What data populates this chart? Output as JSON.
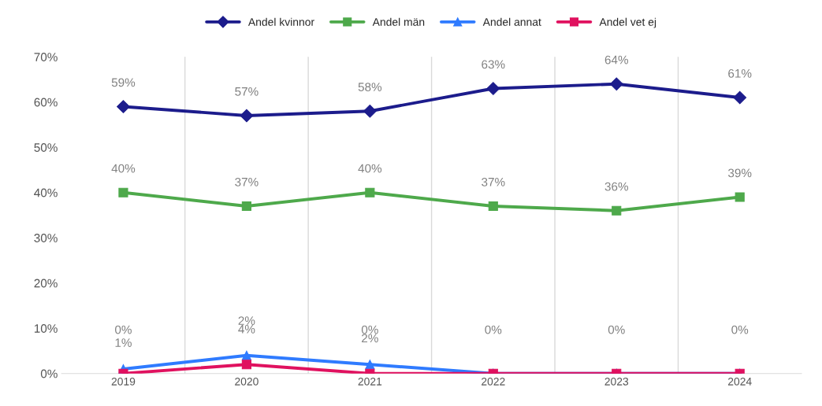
{
  "chart_data": {
    "type": "line",
    "categories": [
      "2019",
      "2020",
      "2021",
      "2022",
      "2023",
      "2024"
    ],
    "series": [
      {
        "name": "Andel kvinnor",
        "color": "#1c1c8c",
        "marker": "diamond",
        "values": [
          59,
          57,
          58,
          63,
          64,
          61
        ],
        "value_labels": [
          "59%",
          "57%",
          "58%",
          "63%",
          "64%",
          "61%"
        ]
      },
      {
        "name": "Andel män",
        "color": "#4ea94b",
        "marker": "square",
        "values": [
          40,
          37,
          40,
          37,
          36,
          39
        ],
        "value_labels": [
          "40%",
          "37%",
          "40%",
          "37%",
          "36%",
          "39%"
        ]
      },
      {
        "name": "Andel annat",
        "color": "#2f7bff",
        "marker": "triangle",
        "values": [
          1,
          4,
          2,
          0,
          0,
          0
        ],
        "value_labels": [
          "1%",
          "4%",
          "2%",
          null,
          null,
          null
        ]
      },
      {
        "name": "Andel vet ej",
        "color": "#e0115f",
        "marker": "square",
        "values": [
          0,
          2,
          0,
          0,
          0,
          0
        ],
        "value_labels": [
          "0%",
          "2%",
          "0%",
          "0%",
          "0%",
          "0%"
        ]
      }
    ],
    "ylim": [
      0,
      70
    ],
    "yticks": [
      {
        "value": 0,
        "label": "0%"
      },
      {
        "value": 10,
        "label": "10%"
      },
      {
        "value": 20,
        "label": "20%"
      },
      {
        "value": 30,
        "label": "30%"
      },
      {
        "value": 40,
        "label": "40%"
      },
      {
        "value": 50,
        "label": "50%"
      },
      {
        "value": 60,
        "label": "60%"
      },
      {
        "value": 70,
        "label": "70%"
      }
    ],
    "grid": "x",
    "legend": "top",
    "line_style": "solid"
  }
}
